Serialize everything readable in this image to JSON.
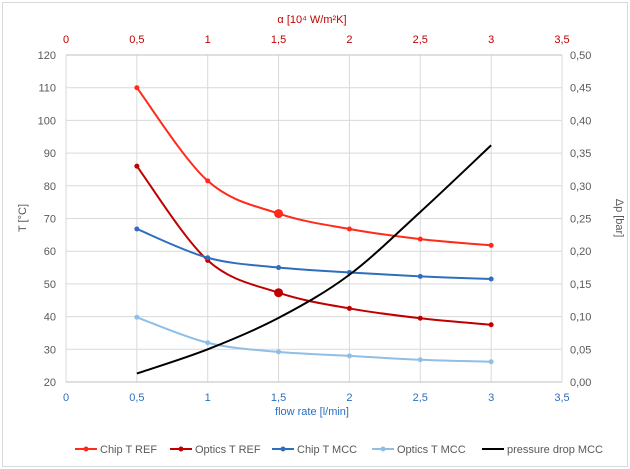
{
  "chart_data": {
    "type": "line",
    "x_label": "flow rate [l/min]",
    "x_top_label": "α [10⁴ W/m²K]",
    "y_label": "T [°C]",
    "y2_label": "Δp [bar]",
    "xlim": [
      0,
      3.5
    ],
    "x_ticks": [
      "0",
      "0,5",
      "1",
      "1,5",
      "2",
      "2,5",
      "3",
      "3,5"
    ],
    "x_top_ticks": [
      "0",
      "0,5",
      "1",
      "1,5",
      "2",
      "2,5",
      "3",
      "3,5"
    ],
    "ylim": [
      20,
      120
    ],
    "y_ticks": [
      "20",
      "30",
      "40",
      "50",
      "60",
      "70",
      "80",
      "90",
      "100",
      "110",
      "120"
    ],
    "y2lim": [
      0,
      0.5
    ],
    "y2_ticks": [
      "0,00",
      "0,05",
      "0,10",
      "0,15",
      "0,20",
      "0,25",
      "0,30",
      "0,35",
      "0,40",
      "0,45",
      "0,50"
    ],
    "grid": true,
    "legend_position": "bottom",
    "x": [
      0.5,
      1,
      1.5,
      2,
      2.5,
      3
    ],
    "series": [
      {
        "name": "Chip T REF",
        "color": "#ff2a1a",
        "axis": "left",
        "markers": true,
        "values": [
          110,
          81.5,
          71.5,
          66.8,
          63.7,
          61.8
        ],
        "highlight_x": 1.5
      },
      {
        "name": "Optics T REF",
        "color": "#c00000",
        "axis": "left",
        "markers": true,
        "values": [
          86,
          57.2,
          47.3,
          42.5,
          39.5,
          37.5
        ],
        "highlight_x": 1.5
      },
      {
        "name": "Chip T MCC",
        "color": "#2e6ebf",
        "axis": "left",
        "markers": true,
        "values": [
          66.8,
          58,
          55,
          53.5,
          52.3,
          51.5
        ]
      },
      {
        "name": "Optics T MCC",
        "color": "#8fbfe6",
        "axis": "left",
        "markers": true,
        "values": [
          39.8,
          32,
          29.2,
          28,
          26.8,
          26.2
        ]
      },
      {
        "name": "pressure drop MCC",
        "color": "#000000",
        "axis": "right",
        "markers": false,
        "values": [
          0.013,
          0.05,
          0.098,
          0.164,
          0.26,
          0.362
        ]
      }
    ],
    "colors": {
      "top_axis": "#c00000",
      "bottom_axis": "#2e6ebf",
      "grid": "#d9d9d9",
      "text": "#595959"
    }
  }
}
